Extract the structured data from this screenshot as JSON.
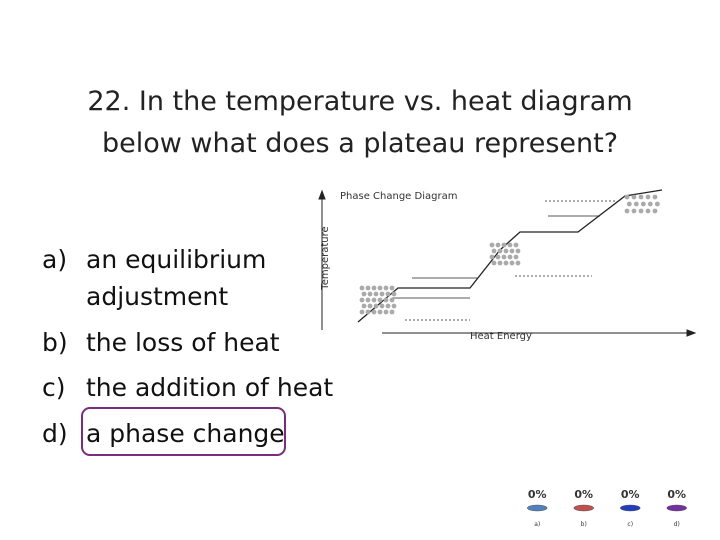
{
  "slide": {
    "title": {
      "line1": "22. In the temperature vs. heat diagram",
      "line2": "below what does a plateau represent?"
    },
    "answers": [
      {
        "label": "a)",
        "text": [
          "an equilibrium",
          "adjustment"
        ]
      },
      {
        "label": "b)",
        "text": [
          "the loss of heat"
        ]
      },
      {
        "label": "c)",
        "text": [
          "the addition of heat"
        ]
      },
      {
        "label": "d)",
        "text": [
          "a phase change"
        ]
      }
    ],
    "diagram": {
      "title": "Phase Change Diagram",
      "y_label": "Temperature",
      "x_label": "Heat Energy"
    }
  },
  "chart_data": {
    "type": "bar",
    "categories": [
      "a)",
      "b)",
      "c)",
      "d)"
    ],
    "values": [
      0,
      0,
      0,
      0
    ],
    "value_labels": [
      "0%",
      "0%",
      "0%",
      "0%"
    ],
    "ylim": [
      0,
      100
    ],
    "colors": [
      "#4f81bd",
      "#c0504d",
      "#1f3fbf",
      "#7030a0"
    ]
  }
}
